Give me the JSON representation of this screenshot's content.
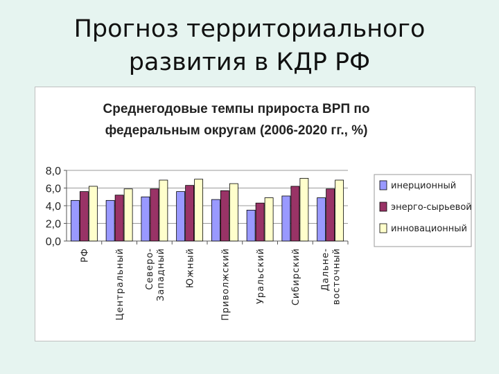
{
  "slide": {
    "title_line1": "Прогноз территориального",
    "title_line2": "развития в КДР РФ"
  },
  "chart_data": {
    "type": "bar",
    "title_line1": "Среднегодовые темпы прироста ВРП по",
    "title_line2": "федеральным округам (2006-2020 гг., %)",
    "categories": [
      [
        "РФ"
      ],
      [
        "Центральный"
      ],
      [
        "Северо-",
        "Западный"
      ],
      [
        "Южный"
      ],
      [
        "Приволжский"
      ],
      [
        "Уральский"
      ],
      [
        "Сибирский"
      ],
      [
        "Дальне-",
        "восточный"
      ]
    ],
    "series": [
      {
        "name": "инерционный",
        "color": "#9999ff",
        "values": [
          4.6,
          4.6,
          5.0,
          5.6,
          4.7,
          3.5,
          5.1,
          4.9
        ]
      },
      {
        "name": "энерго-сырьевой",
        "color": "#993366",
        "values": [
          5.6,
          5.2,
          5.9,
          6.3,
          5.7,
          4.3,
          6.2,
          5.9
        ]
      },
      {
        "name": "инновационный",
        "color": "#ffffcc",
        "values": [
          6.2,
          5.9,
          6.9,
          7.0,
          6.5,
          4.9,
          7.1,
          6.9
        ]
      }
    ],
    "ylim": [
      0,
      8
    ],
    "yticks": [
      "0,0",
      "2,0",
      "4,0",
      "6,0",
      "8,0"
    ],
    "grid": true,
    "legend_position": "right"
  }
}
